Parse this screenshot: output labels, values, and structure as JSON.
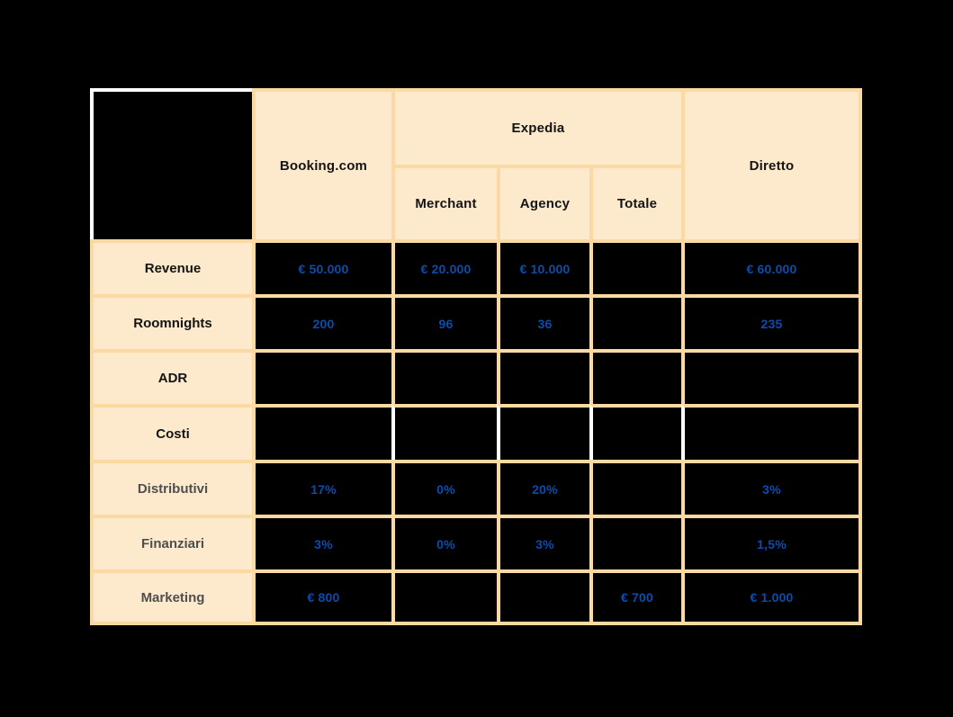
{
  "chart_data": {
    "type": "table",
    "header": {
      "booking": "Booking.com",
      "expedia": "Expedia",
      "expedia_sub": {
        "merchant": "Merchant",
        "agency": "Agency",
        "totale": "Totale"
      },
      "diretto": "Diretto"
    },
    "rows": [
      {
        "label": "Revenue",
        "values": [
          "€ 50.000",
          "€ 20.000",
          "€ 10.000",
          "",
          "€ 60.000"
        ]
      },
      {
        "label": "Roomnights",
        "values": [
          "200",
          "96",
          "36",
          "",
          "235"
        ]
      },
      {
        "label": "ADR",
        "values": [
          "",
          "",
          "",
          "",
          ""
        ]
      },
      {
        "label": "Costi",
        "values": [
          "",
          "",
          "",
          "",
          ""
        ]
      },
      {
        "label": "Distributivi",
        "values": [
          "17%",
          "0%",
          "20%",
          "",
          "3%"
        ]
      },
      {
        "label": "Finanziari",
        "values": [
          "3%",
          "0%",
          "3%",
          "",
          "1,5%"
        ]
      },
      {
        "label": "Marketing",
        "values": [
          "€ 800",
          "",
          "",
          "€ 700",
          "€ 1.000"
        ]
      }
    ],
    "layout_notes": {
      "expedia_spans": [
        "Merchant",
        "Agency",
        "Totale"
      ],
      "costi_row_divider_color": "#ffffff"
    }
  },
  "colors": {
    "background": "#000000",
    "grid_border": "#fbd9a3",
    "cell_cream": "#fdeacc",
    "value_blue": "#0b4cad",
    "label_dark": "#141414",
    "label_muted": "#4f4f4f",
    "white_divider": "#ffffff"
  }
}
